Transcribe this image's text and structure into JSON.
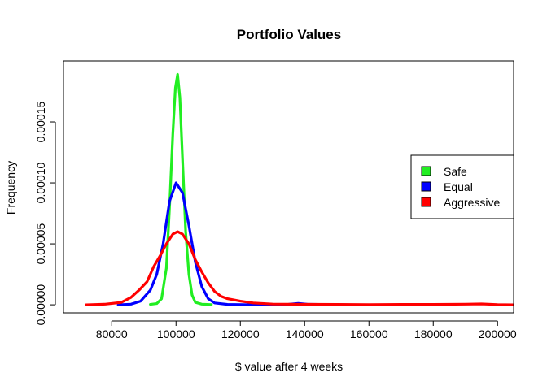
{
  "chart_data": {
    "type": "line",
    "title": "Portfolio Values",
    "xlabel": "$ value after 4 weeks",
    "ylabel": "Frequency",
    "xlim": [
      65000,
      205000
    ],
    "ylim": [
      -6.6e-06,
      0.0002
    ],
    "x_ticks": [
      80000,
      100000,
      120000,
      140000,
      160000,
      180000,
      200000
    ],
    "y_ticks": [
      0,
      5e-05,
      0.0001,
      0.00015
    ],
    "y_tick_labels": [
      "0.00000",
      "0.00005",
      "0.00010",
      "0.00015"
    ],
    "grid": false,
    "legend_position": "right",
    "series": [
      {
        "name": "Safe",
        "color": "#22ee22",
        "points": [
          [
            92000,
            3e-07
          ],
          [
            94000,
            1e-06
          ],
          [
            95500,
            5e-06
          ],
          [
            97000,
            3e-05
          ],
          [
            98000,
            8e-05
          ],
          [
            99000,
            0.00014
          ],
          [
            99800,
            0.000178
          ],
          [
            100500,
            0.000189
          ],
          [
            101200,
            0.00017
          ],
          [
            102000,
            0.00012
          ],
          [
            103000,
            6e-05
          ],
          [
            104000,
            2.5e-05
          ],
          [
            105000,
            8e-06
          ],
          [
            106000,
            2e-06
          ],
          [
            108000,
            5e-07
          ],
          [
            111000,
            2e-07
          ]
        ]
      },
      {
        "name": "Equal",
        "color": "#0000ff",
        "points": [
          [
            82000,
            0
          ],
          [
            86000,
            5e-07
          ],
          [
            89000,
            3e-06
          ],
          [
            92000,
            1.2e-05
          ],
          [
            94000,
            2.5e-05
          ],
          [
            96000,
            5e-05
          ],
          [
            98000,
            8.5e-05
          ],
          [
            100000,
            0.0001
          ],
          [
            102000,
            9.2e-05
          ],
          [
            104000,
            6.5e-05
          ],
          [
            106000,
            3.5e-05
          ],
          [
            108000,
            1.5e-05
          ],
          [
            110000,
            5e-06
          ],
          [
            112000,
            1.5e-06
          ],
          [
            116000,
            3e-07
          ],
          [
            125000,
            0
          ],
          [
            135000,
            4e-07
          ],
          [
            138000,
            1.2e-06
          ],
          [
            141000,
            4e-07
          ],
          [
            150000,
            2e-07
          ],
          [
            154000,
            0
          ]
        ]
      },
      {
        "name": "Aggressive",
        "color": "#ff0000",
        "points": [
          [
            72000,
            0
          ],
          [
            78000,
            5e-07
          ],
          [
            83000,
            2e-06
          ],
          [
            86000,
            6e-06
          ],
          [
            88500,
            1.2e-05
          ],
          [
            91000,
            1.9e-05
          ],
          [
            93000,
            3.1e-05
          ],
          [
            95000,
            4e-05
          ],
          [
            97000,
            5e-05
          ],
          [
            99000,
            5.8e-05
          ],
          [
            100500,
            6e-05
          ],
          [
            102000,
            5.8e-05
          ],
          [
            104000,
            5e-05
          ],
          [
            106000,
            3.7e-05
          ],
          [
            108000,
            2.7e-05
          ],
          [
            110000,
            1.8e-05
          ],
          [
            112000,
            1.1e-05
          ],
          [
            114000,
            7e-06
          ],
          [
            116000,
            5e-06
          ],
          [
            118000,
            4e-06
          ],
          [
            120000,
            3e-06
          ],
          [
            124000,
            1.5e-06
          ],
          [
            130000,
            6e-07
          ],
          [
            140000,
            4e-07
          ],
          [
            150000,
            3e-07
          ],
          [
            160000,
            2e-07
          ],
          [
            170000,
            3e-07
          ],
          [
            180000,
            3e-07
          ],
          [
            190000,
            5e-07
          ],
          [
            195000,
            7e-07
          ],
          [
            200000,
            2e-07
          ],
          [
            205000,
            0
          ]
        ]
      }
    ]
  }
}
